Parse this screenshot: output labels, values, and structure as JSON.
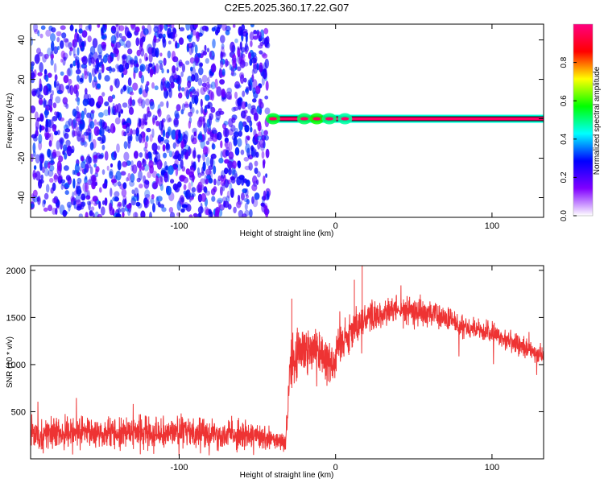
{
  "title": "C2E5.2025.360.17.22.G07",
  "chart_data": [
    {
      "type": "heatmap",
      "name": "spectrogram",
      "xlabel": "Height of straight line (km)",
      "ylabel": "Frequency (Hz)",
      "xlim": [
        -195,
        133
      ],
      "ylim": [
        -50,
        48
      ],
      "xticks": [
        -100,
        0,
        100
      ],
      "xtick_labels": [
        "-100",
        "0",
        "100"
      ],
      "yticks": [
        -40,
        -20,
        0,
        20,
        40
      ],
      "ytick_labels": [
        "-40",
        "-20",
        "0",
        "20",
        "40"
      ],
      "noise_region": {
        "x_from": -195,
        "x_to": -43,
        "typical_amplitude": 0.15
      },
      "signal_line": {
        "frequency": 0,
        "x_from": -43,
        "x_to": 133,
        "amplitude": 0.97,
        "halo_amplitude": 0.45
      },
      "signal_blobs": [
        {
          "x": -40,
          "amplitude": 0.55
        },
        {
          "x": -20,
          "amplitude": 0.52
        },
        {
          "x": -12,
          "amplitude": 0.58
        },
        {
          "x": -4,
          "amplitude": 0.5
        },
        {
          "x": 6,
          "amplitude": 0.48
        }
      ],
      "colorbar": {
        "label": "Normalized spectral amplitude",
        "range": [
          0,
          1
        ],
        "ticks": [
          0,
          0.2,
          0.4,
          0.6,
          0.8
        ],
        "tick_labels": [
          "0.0",
          "0.2",
          "0.4",
          "0.6",
          "0.8"
        ],
        "colors": [
          "#ffffff",
          "#8000ff",
          "#0000ff",
          "#00ffff",
          "#00ff00",
          "#ffff00",
          "#ff0000",
          "#ff0080"
        ]
      }
    },
    {
      "type": "line",
      "name": "snr",
      "xlabel": "Height of straight line (km)",
      "ylabel": "SNR (10 * v/v)",
      "xlim": [
        -195,
        133
      ],
      "ylim": [
        0,
        2050
      ],
      "xticks": [
        -100,
        0,
        100
      ],
      "xtick_labels": [
        "-100",
        "0",
        "100"
      ],
      "yticks": [
        500,
        1000,
        1500,
        2000
      ],
      "ytick_labels": [
        "500",
        "1000",
        "1500",
        "2000"
      ],
      "color": "#ee3333",
      "envelope_x": [
        -195,
        -150,
        -100,
        -60,
        -32,
        -29,
        -20,
        -10,
        0,
        2,
        10,
        20,
        40,
        60,
        80,
        100,
        133
      ],
      "envelope_y": [
        260,
        280,
        290,
        260,
        170,
        1000,
        1200,
        1150,
        1000,
        1250,
        1350,
        1500,
        1580,
        1550,
        1420,
        1330,
        1100
      ],
      "noise_amplitude": [
        220,
        220,
        230,
        210,
        150,
        400,
        420,
        400,
        380,
        350,
        300,
        260,
        200,
        200,
        180,
        160,
        150
      ],
      "peaks": [
        {
          "x": -28,
          "y": 1700
        },
        {
          "x": 12,
          "y": 1900
        },
        {
          "x": 17,
          "y": 2050
        }
      ]
    }
  ]
}
